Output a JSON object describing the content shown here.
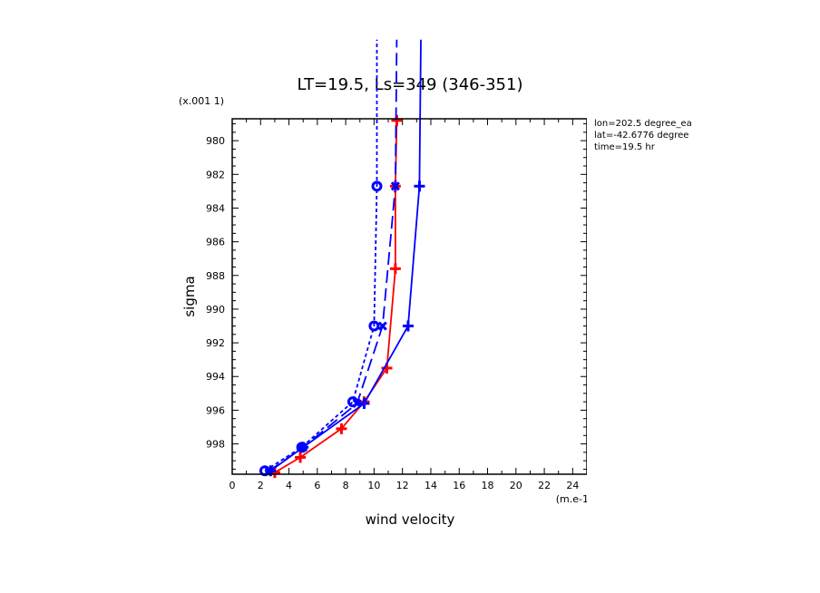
{
  "chart_data": {
    "type": "line",
    "title": "LT=19.5, Ls=349 (346-351)",
    "xlabel": "wind velocity",
    "ylabel": "sigma",
    "x_units": "(m.e-1)",
    "y_units": "(x.001 1)",
    "xlim": [
      0,
      25
    ],
    "ylim": [
      999.8,
      978.7
    ],
    "x_ticks": [
      "0",
      "2",
      "4",
      "6",
      "8",
      "10",
      "12",
      "14",
      "16",
      "18",
      "20",
      "22",
      "24"
    ],
    "y_ticks": [
      "980",
      "982",
      "984",
      "986",
      "988",
      "990",
      "992",
      "994",
      "996",
      "998"
    ],
    "info": [
      "lon=202.5 degree_ea",
      "lat=-42.6776 degree",
      "time=19.5 hr"
    ],
    "series": [
      {
        "color": "#ff0000",
        "dash": "solid",
        "marker": "plus",
        "x": [
          3.0,
          4.8,
          7.7,
          9.3,
          10.9,
          11.5,
          11.5,
          11.6
        ],
        "y": [
          999.7,
          998.8,
          997.1,
          995.5,
          993.5,
          987.6,
          982.7,
          978.8
        ]
      },
      {
        "color": "#0000ff",
        "dash": "solid",
        "marker": "plus",
        "x": [
          2.7,
          5.0,
          9.3,
          12.4,
          13.2,
          13.3
        ],
        "y": [
          999.6,
          998.2,
          995.6,
          991.0,
          982.7,
          974.0
        ]
      },
      {
        "color": "#0000ff",
        "dash": "long",
        "marker": "x",
        "x": [
          2.6,
          5.0,
          8.8,
          10.6,
          11.5,
          11.6
        ],
        "y": [
          999.6,
          998.2,
          995.6,
          991.0,
          982.7,
          974.0
        ]
      },
      {
        "color": "#0000ff",
        "dash": "short",
        "marker": "circle",
        "x": [
          2.3,
          4.9,
          8.5,
          10.0,
          10.2,
          10.2
        ],
        "y": [
          999.6,
          998.2,
          995.5,
          991.0,
          982.7,
          974.0
        ]
      }
    ]
  }
}
